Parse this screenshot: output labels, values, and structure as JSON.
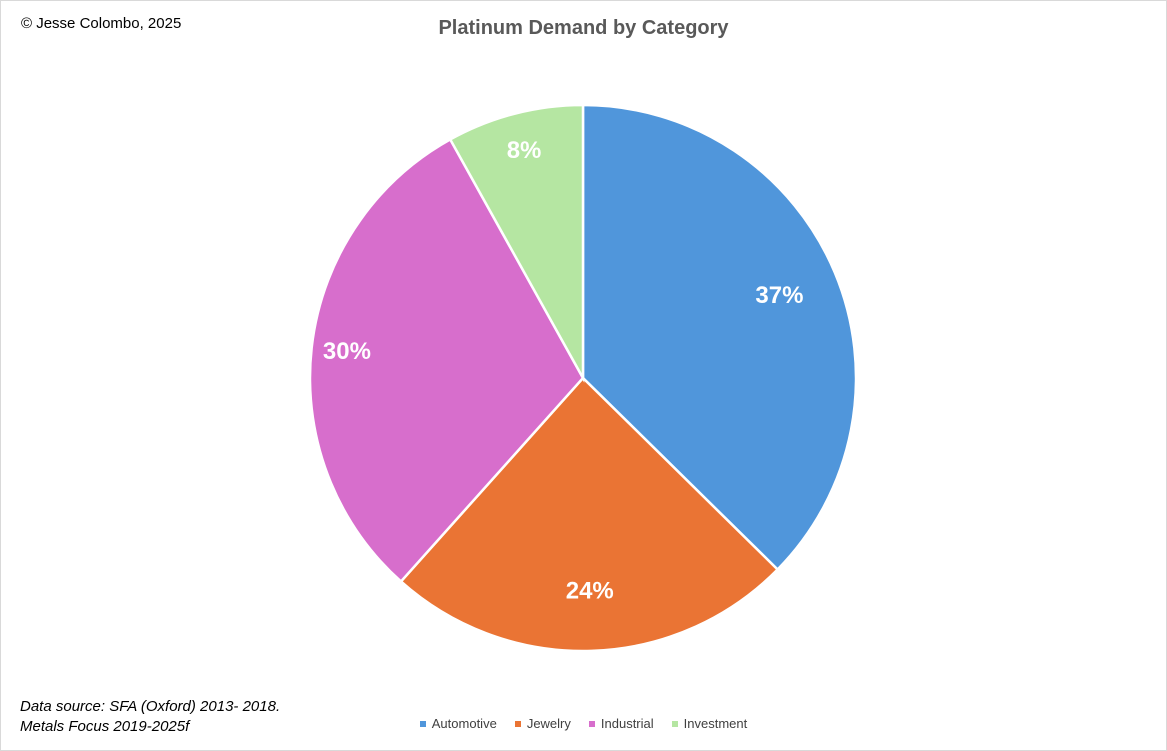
{
  "copyright": "© Jesse Colombo, 2025",
  "source_lines": [
    "Data source: SFA (Oxford) 2013- 2018.",
    "Metals Focus 2019-2025f"
  ],
  "chart_data": {
    "type": "pie",
    "title": "Platinum Demand by Category",
    "categories": [
      "Automotive",
      "Jewelry",
      "Industrial",
      "Investment"
    ],
    "values": [
      37,
      24,
      30,
      8
    ],
    "data_labels": [
      "37%",
      "24%",
      "30%",
      "8%"
    ],
    "colors": [
      "#5096db",
      "#ea7434",
      "#d76ecc",
      "#b5e6a2"
    ],
    "start_angle": "12 o'clock, clockwise",
    "legend_position": "bottom"
  }
}
